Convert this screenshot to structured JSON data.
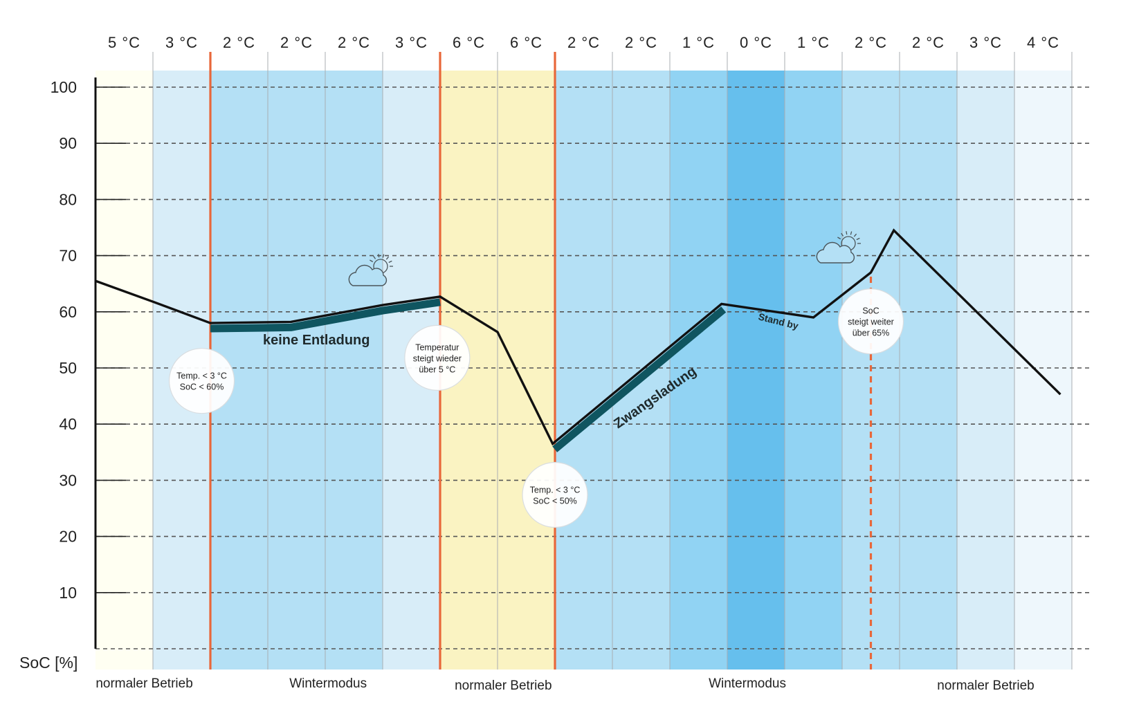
{
  "chart_data": {
    "type": "line",
    "ylabel": "SoC [%]",
    "ylim": [
      0,
      100
    ],
    "y_ticks": [
      10,
      20,
      30,
      40,
      50,
      60,
      70,
      80,
      90,
      100
    ],
    "grid": "horizontal dashed",
    "temperatures": [
      "5 °C",
      "3 °C",
      "2 °C",
      "2 °C",
      "2 °C",
      "3 °C",
      "6 °C",
      "6 °C",
      "2 °C",
      "2 °C",
      "1 °C",
      "0 °C",
      "1 °C",
      "2 °C",
      "2 °C",
      "3 °C",
      "4 °C"
    ],
    "column_colors": [
      "#fffff2",
      "#d8edf8",
      "#b4e0f5",
      "#b4e0f5",
      "#b4e0f5",
      "#d8edf8",
      "#faf3c2",
      "#faf3c2",
      "#b4e0f5",
      "#b4e0f5",
      "#91d3f3",
      "#66bfed",
      "#91d3f3",
      "#b4e0f5",
      "#b4e0f5",
      "#d8edf8",
      "#eef7fc"
    ],
    "x": [
      0,
      1,
      2,
      3.4,
      5,
      6,
      7,
      7.96,
      10.9,
      12.5,
      13.5,
      13.9,
      16.8
    ],
    "soc": [
      65.5,
      61.8,
      58,
      58.2,
      61.2,
      62.7,
      56.4,
      36.5,
      61.4,
      59,
      67,
      74.5,
      45.3
    ],
    "mode_labels": [
      {
        "label": "normaler Betrieb",
        "x": 0.85
      },
      {
        "label": "Wintermodus",
        "x": 4.05
      },
      {
        "label": "normaler Betrieb",
        "x": 7.1
      },
      {
        "label": "Wintermodus",
        "x": 11.35
      },
      {
        "label": "normaler Betrieb",
        "x": 15.5
      }
    ],
    "mode_boundaries": [
      {
        "x": 2,
        "style": "solid"
      },
      {
        "x": 6,
        "style": "solid"
      },
      {
        "x": 8,
        "style": "solid"
      },
      {
        "x": 13.5,
        "style": "dashed"
      }
    ],
    "annotations": [
      {
        "name": "keine-entladung",
        "label": "keine Entladung"
      },
      {
        "name": "zwangsladung",
        "label": "Zwangsladung"
      },
      {
        "name": "stand-by",
        "label": "Stand by"
      }
    ],
    "bubbles": [
      {
        "lines": [
          "Temp. < 3 °C",
          "SoC < 60%"
        ],
        "x": 1.85,
        "soc": 47.7
      },
      {
        "lines": [
          "Temperatur",
          "steigt wieder",
          "über  5 °C"
        ],
        "x": 5.95,
        "soc": 51.8
      },
      {
        "lines": [
          "Temp. < 3 °C",
          "SoC < 50%"
        ],
        "x": 8.0,
        "soc": 27.4
      },
      {
        "lines": [
          "SoC",
          "steigt weiter",
          "über 65%"
        ],
        "x": 13.5,
        "soc": 58.3
      }
    ],
    "highlight_color": "#0f5560",
    "line_color": "#111111",
    "boundary_color": "#e8673a",
    "weather_icon": "cloud-sun-icon"
  }
}
